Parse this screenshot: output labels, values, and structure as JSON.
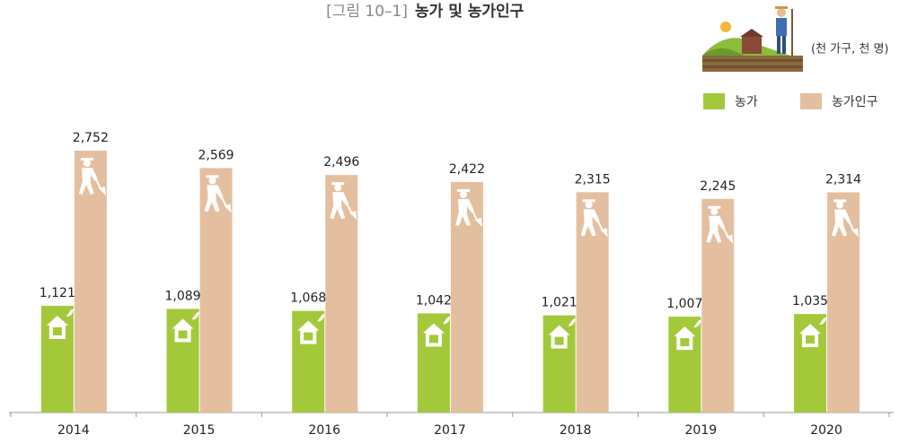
{
  "chart_data": {
    "type": "bar",
    "figure_label": "[그림 10–1]",
    "title": "농가 및 농가인구",
    "unit": "(천 가구, 천 명)",
    "categories": [
      "2014",
      "2015",
      "2016",
      "2017",
      "2018",
      "2019",
      "2020"
    ],
    "series": [
      {
        "name": "농가",
        "color": "#a3c93a",
        "values": [
          1121,
          1089,
          1068,
          1042,
          1021,
          1007,
          1035
        ],
        "value_labels": [
          "1,121",
          "1,089",
          "1,068",
          "1,042",
          "1,021",
          "1,007",
          "1,035"
        ]
      },
      {
        "name": "농가인구",
        "color": "#e4bf9f",
        "values": [
          2752,
          2569,
          2496,
          2422,
          2315,
          2245,
          2314
        ],
        "value_labels": [
          "2,752",
          "2,569",
          "2,496",
          "2,422",
          "2,315",
          "2,245",
          "2,314"
        ]
      }
    ],
    "ylim": [
      0,
      2850
    ]
  }
}
